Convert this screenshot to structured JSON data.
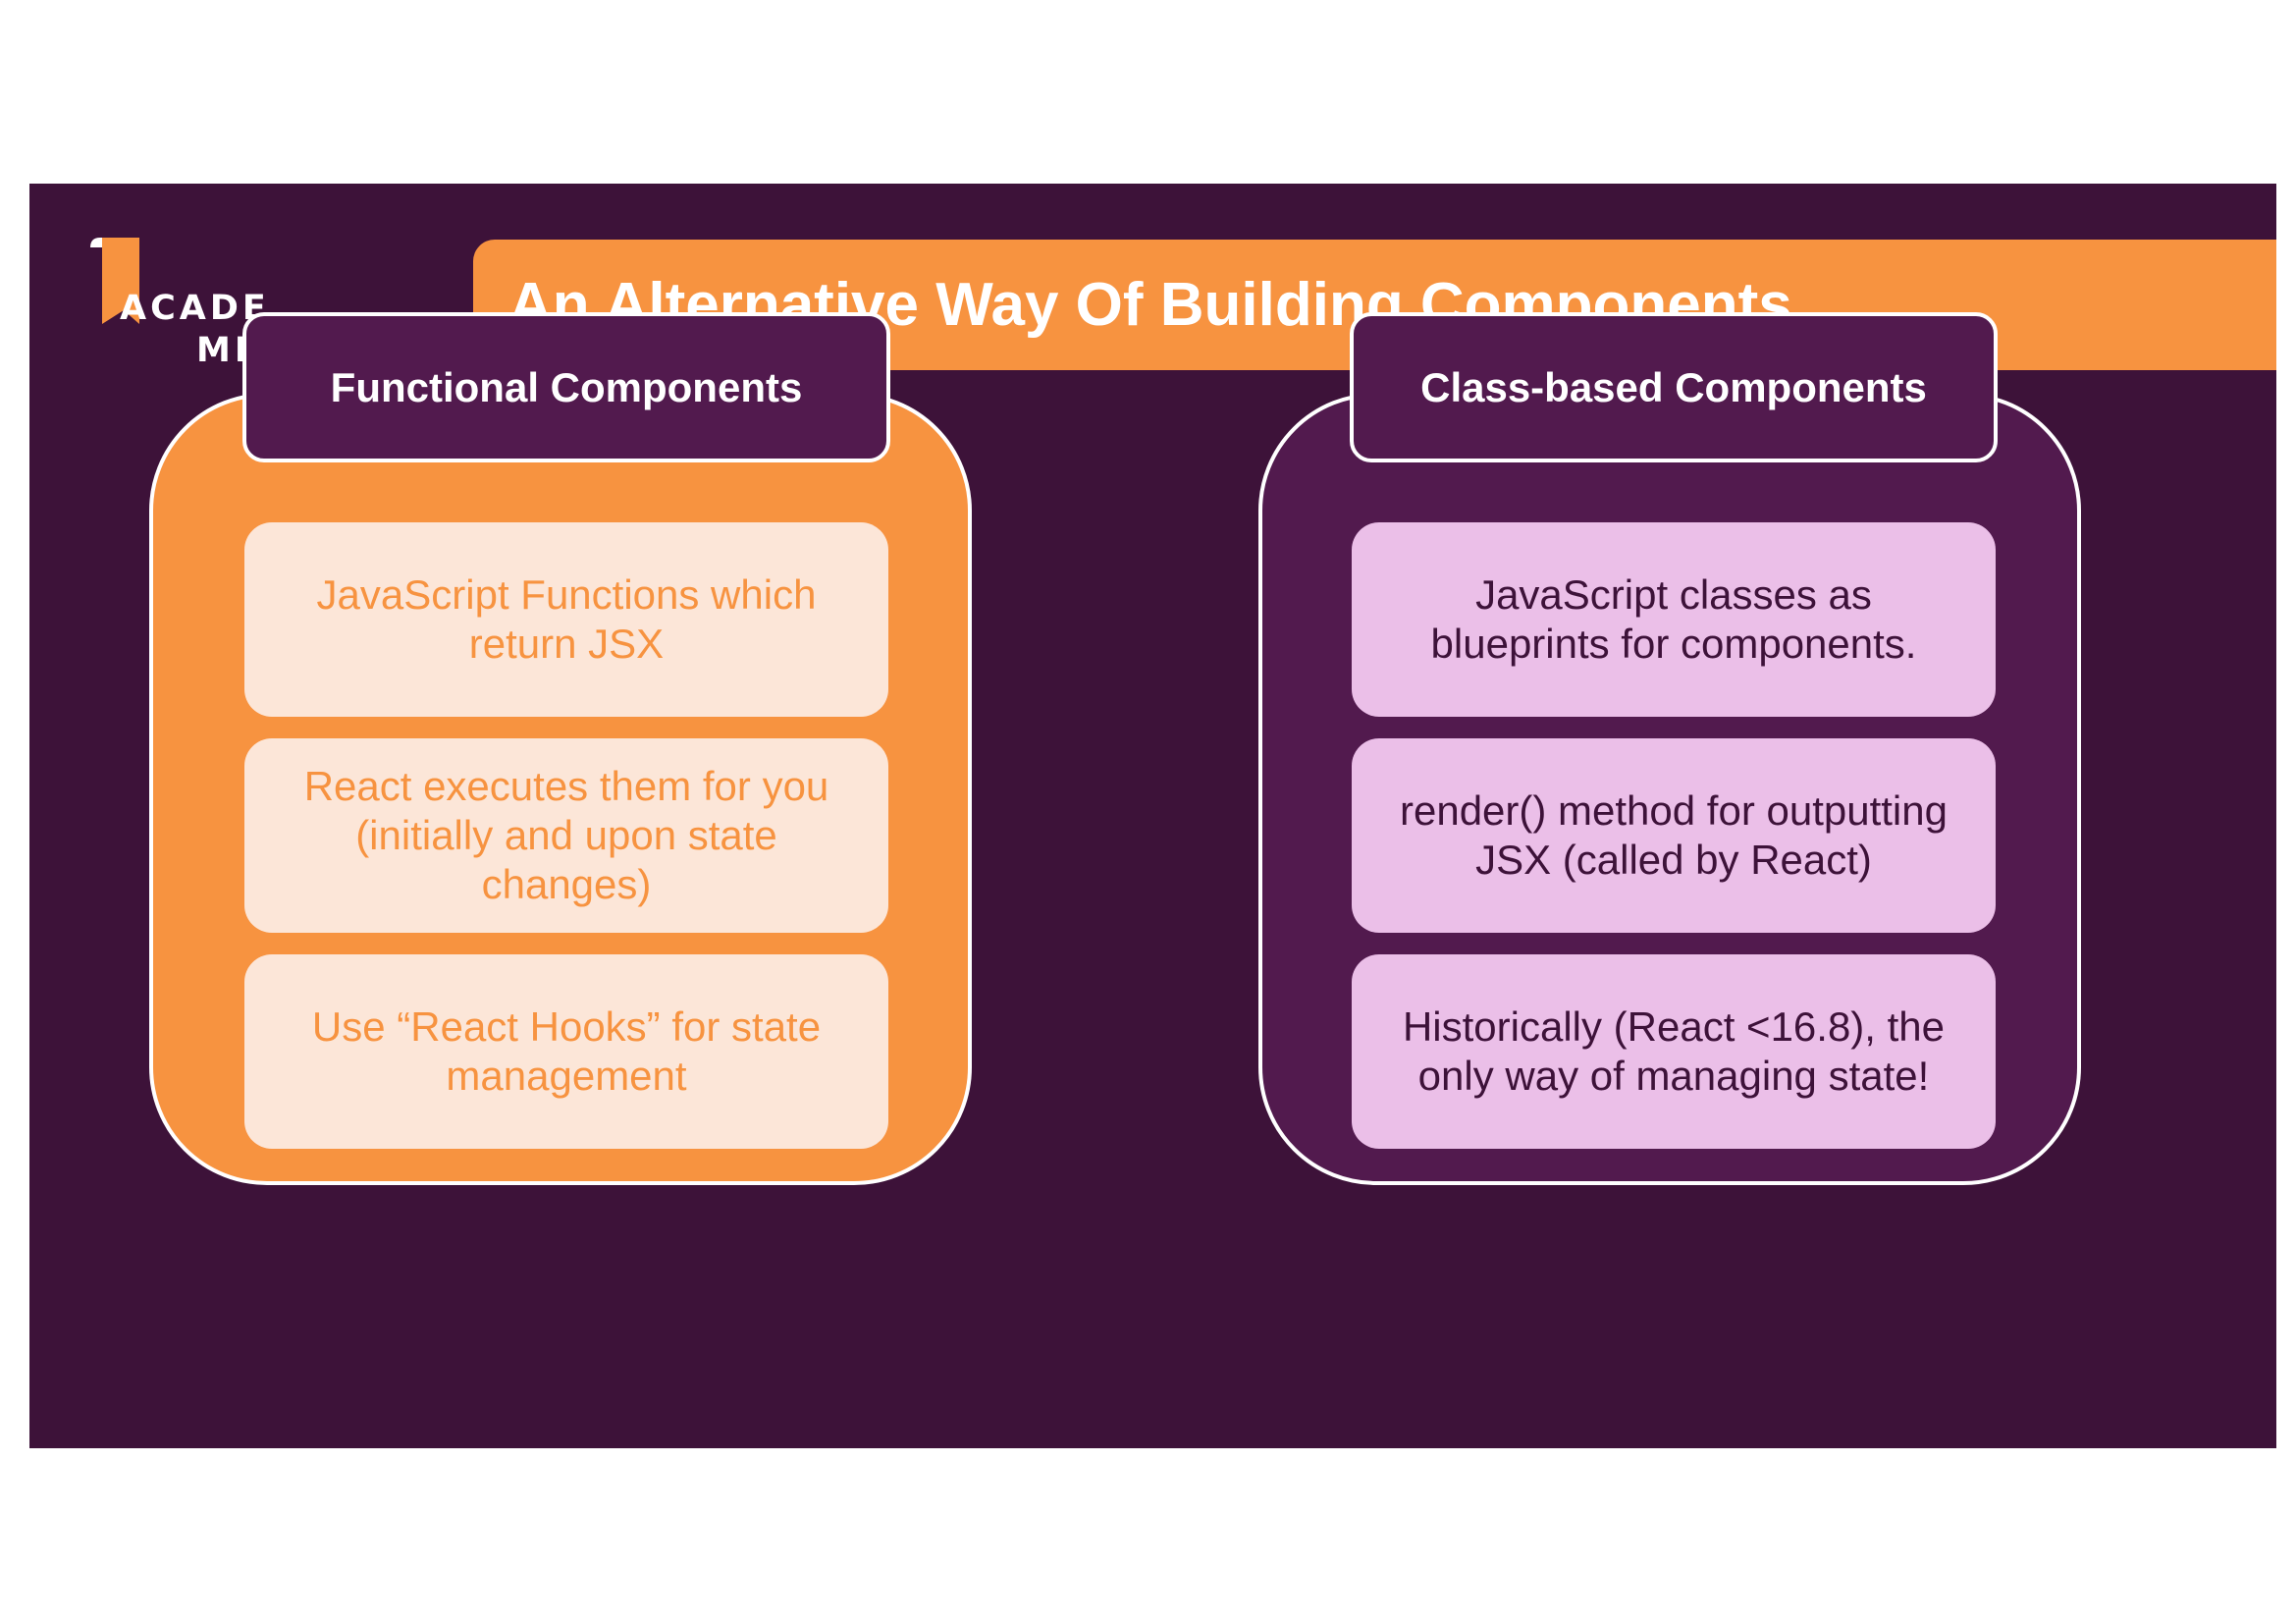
{
  "logo": {
    "line1": "ACADE",
    "line2": "MIND"
  },
  "title": "An Alternative Way Of Building Components",
  "left_panel": {
    "header": "Functional Components",
    "items": [
      "JavaScript Functions which return JSX",
      "React executes them for you (initially and upon state changes)",
      "Use “React Hooks” for state management"
    ]
  },
  "right_panel": {
    "header": "Class-based Components",
    "items": [
      "JavaScript classes as blueprints for components.",
      "render() method for outputting JSX (called by React)",
      "Historically (React <16.8), the only way of managing state!"
    ]
  },
  "colors": {
    "background": "#3d1239",
    "accent_orange": "#f79340",
    "purple": "#521a4e",
    "light_orange": "#fce6d8",
    "light_pink": "#ebbfe8"
  }
}
